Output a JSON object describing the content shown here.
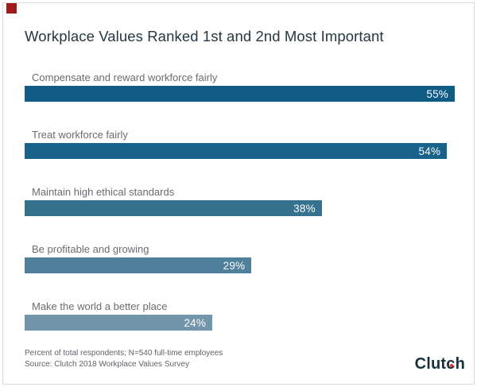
{
  "title": "Workplace Values Ranked 1st and 2nd Most Important",
  "chart_data": {
    "type": "bar",
    "orientation": "horizontal",
    "title": "Workplace Values Ranked 1st and 2nd Most Important",
    "categories": [
      "Compensate and reward workforce fairly",
      "Treat workforce fairly",
      "Maintain high ethical standards",
      "Be profitable and growing",
      "Make the world a better place"
    ],
    "values": [
      55,
      54,
      38,
      29,
      24
    ],
    "value_labels": [
      "55%",
      "54%",
      "38%",
      "29%",
      "24%"
    ],
    "bar_colors": [
      "#0e5b83",
      "#186289",
      "#36718f",
      "#4e7f9b",
      "#7295aa"
    ],
    "xlim": [
      0,
      55
    ],
    "xlabel": "",
    "ylabel": "",
    "grid": false,
    "legend": "none",
    "value_label_position": "inside-right",
    "value_label_color": "#ffffff",
    "category_label_color": "#686c70"
  },
  "footer": {
    "note": "Percent of total respondents; N=540 full-time employees",
    "source": "Source: Clutch 2018 Workplace Values Survey"
  },
  "logo": {
    "part1": "Clut",
    "part2": "c",
    "part3": "h",
    "text_color": "#17313d",
    "dot_color": "#e62b32"
  },
  "colors": {
    "card_border": "#d9d9d9",
    "title_text": "#243742",
    "corner_marker": "#9e1b1b",
    "background": "#ffffff"
  }
}
